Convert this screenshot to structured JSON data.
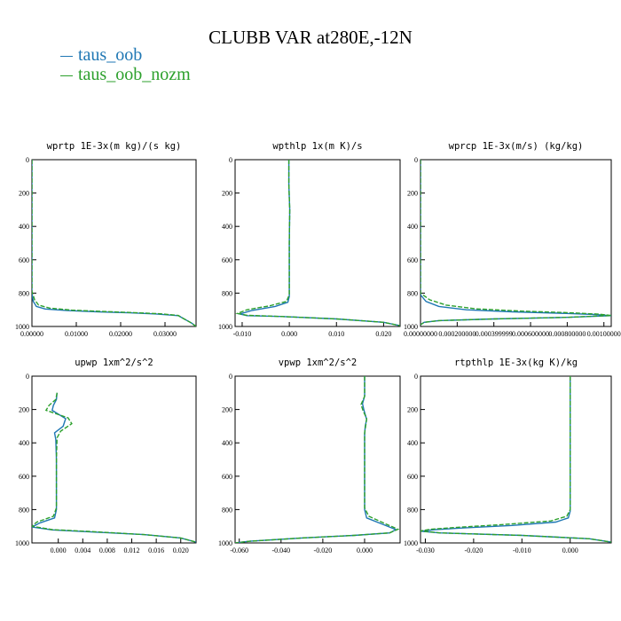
{
  "title": "CLUBB VAR at280E,-12N",
  "legend": [
    {
      "name": "taus_oob",
      "color": "#1f77b4",
      "dash": "solid"
    },
    {
      "name": "taus_oob_nozm",
      "color": "#2ca02c",
      "dash": "dashed"
    }
  ],
  "chart_data": [
    {
      "type": "line",
      "title": "wprtp  1E-3x(m kg)/(s kg)",
      "xlim": [
        0,
        0.037
      ],
      "ylim": [
        1000,
        0
      ],
      "xticks": [
        0,
        0.01,
        0.02,
        0.03
      ],
      "xtick_labels": [
        "0.00000",
        "0.01000",
        "0.02000",
        "0.03000"
      ],
      "yticks": [
        0,
        200,
        400,
        600,
        800,
        1000
      ],
      "ytick_labels": [
        "0",
        "200",
        "400",
        "600",
        "800",
        "1000"
      ],
      "grid": false,
      "series": [
        {
          "name": "taus_oob",
          "x": [
            0,
            0,
            0,
            0.0003,
            0.001,
            0.003,
            0.008,
            0.015,
            0.022,
            0.028,
            0.033,
            0.034,
            0.036,
            0.037
          ],
          "y": [
            0,
            400,
            800,
            850,
            880,
            895,
            905,
            912,
            918,
            925,
            935,
            950,
            980,
            1000
          ]
        },
        {
          "name": "taus_oob_nozm",
          "x": [
            0,
            0,
            0,
            0.0006,
            0.0015,
            0.004,
            0.009,
            0.016,
            0.023,
            0.029,
            0.033,
            0.034,
            0.036,
            0.037
          ],
          "y": [
            0,
            400,
            790,
            840,
            872,
            890,
            902,
            910,
            917,
            924,
            934,
            950,
            980,
            1000
          ]
        }
      ]
    },
    {
      "type": "line",
      "title": "wpthlp  1x(m K)/s",
      "xlim": [
        -0.0115,
        0.0235
      ],
      "ylim": [
        1000,
        0
      ],
      "xticks": [
        -0.01,
        0,
        0.01,
        0.02
      ],
      "xtick_labels": [
        "-0.010",
        "0.000",
        "0.010",
        "0.020"
      ],
      "yticks": [
        0,
        200,
        400,
        600,
        800,
        1000
      ],
      "ytick_labels": [
        "0",
        "200",
        "400",
        "600",
        "800",
        "1000"
      ],
      "grid": false,
      "series": [
        {
          "name": "taus_oob",
          "x": [
            -0.0001,
            -0.0001,
            0.0001,
            0,
            0,
            0,
            -0.0003,
            -0.003,
            -0.008,
            -0.0105,
            -0.009,
            -0.002,
            0.01,
            0.02,
            0.0235
          ],
          "y": [
            0,
            150,
            300,
            500,
            700,
            820,
            855,
            880,
            905,
            925,
            935,
            940,
            955,
            975,
            995
          ]
        },
        {
          "name": "taus_oob_nozm",
          "x": [
            -0.0001,
            -0.0001,
            0.0001,
            0,
            0,
            0,
            -0.0006,
            -0.004,
            -0.009,
            -0.011,
            -0.009,
            -0.002,
            0.01,
            0.02,
            0.0235
          ],
          "y": [
            0,
            150,
            300,
            500,
            700,
            810,
            850,
            875,
            900,
            922,
            933,
            940,
            955,
            975,
            995
          ]
        }
      ]
    },
    {
      "type": "line",
      "title": "wprcp  1E-3x(m/s) (kg/kg)",
      "xlim": [
        0,
        0.00104
      ],
      "ylim": [
        1000,
        0
      ],
      "xticks": [
        0,
        0.0002,
        0.0004,
        0.0006,
        0.0008,
        0.001
      ],
      "xtick_labels": [
        "0.00000000",
        "0.000200000",
        "0.000399999",
        "0.000600000",
        "0.000800000",
        "0.00100000"
      ],
      "yticks": [
        0,
        200,
        400,
        600,
        800,
        1000
      ],
      "ytick_labels": [
        "0",
        "200",
        "400",
        "600",
        "800",
        "1000"
      ],
      "grid": false,
      "series": [
        {
          "name": "taus_oob",
          "x": [
            0,
            0,
            0,
            3e-05,
            0.0001,
            0.00025,
            0.0005,
            0.00075,
            0.00095,
            0.00104,
            0.0008,
            0.0004,
            0.0001,
            2e-05,
            0
          ],
          "y": [
            0,
            400,
            810,
            850,
            880,
            900,
            912,
            920,
            928,
            935,
            945,
            955,
            965,
            975,
            990
          ]
        },
        {
          "name": "taus_oob_nozm",
          "x": [
            0,
            0,
            0,
            5e-05,
            0.00014,
            0.0003,
            0.00055,
            0.0008,
            0.00097,
            0.00104,
            0.0008,
            0.0004,
            0.0001,
            2e-05,
            0
          ],
          "y": [
            0,
            400,
            800,
            840,
            872,
            894,
            908,
            917,
            926,
            934,
            945,
            955,
            965,
            975,
            990
          ]
        }
      ]
    },
    {
      "type": "line",
      "title": "upwp  1xm^2/s^2",
      "xlim": [
        -0.0043,
        0.0225
      ],
      "ylim": [
        1000,
        0
      ],
      "xticks": [
        0,
        0.004,
        0.008,
        0.012,
        0.016,
        0.02
      ],
      "xtick_labels": [
        "0.000",
        "0.004",
        "0.008",
        "0.012",
        "0.016",
        "0.020"
      ],
      "yticks": [
        0,
        200,
        400,
        600,
        800,
        1000
      ],
      "ytick_labels": [
        "0",
        "200",
        "400",
        "600",
        "800",
        "1000"
      ],
      "grid": false,
      "series": [
        {
          "name": "taus_oob",
          "x": [
            -0.0002,
            -0.0003,
            -0.0008,
            -0.001,
            0.0012,
            0.0008,
            -0.0006,
            -0.0004,
            -0.0003,
            -0.0003,
            -0.0006,
            -0.003,
            -0.0043,
            -0.001,
            0.006,
            0.014,
            0.02,
            0.0225
          ],
          "y": [
            100,
            140,
            175,
            205,
            255,
            300,
            340,
            380,
            500,
            800,
            850,
            880,
            905,
            922,
            935,
            950,
            970,
            995
          ]
        },
        {
          "name": "taus_oob_nozm",
          "x": [
            -0.0002,
            -0.0004,
            -0.0015,
            -0.002,
            0.0016,
            0.0022,
            0.0004,
            -0.0002,
            -0.0003,
            -0.0003,
            -0.0008,
            -0.0035,
            -0.0043,
            -0.001,
            0.006,
            0.014,
            0.02,
            0.0225
          ],
          "y": [
            100,
            140,
            175,
            205,
            250,
            285,
            330,
            370,
            500,
            790,
            840,
            875,
            900,
            920,
            933,
            950,
            970,
            995
          ]
        }
      ]
    },
    {
      "type": "line",
      "title": "vpwp  1xm^2/s^2",
      "xlim": [
        -0.062,
        0.017
      ],
      "ylim": [
        1000,
        0
      ],
      "xticks": [
        -0.06,
        -0.04,
        -0.02,
        0
      ],
      "xtick_labels": [
        "-0.060",
        "-0.040",
        "-0.020",
        "0.000"
      ],
      "yticks": [
        0,
        200,
        400,
        600,
        800,
        1000
      ],
      "ytick_labels": [
        "0",
        "200",
        "400",
        "600",
        "800",
        "1000"
      ],
      "grid": false,
      "series": [
        {
          "name": "taus_oob",
          "x": [
            0,
            0,
            -0.001,
            -0.0003,
            0.001,
            0.0003,
            0,
            0,
            0.001,
            0.008,
            0.015,
            0.012,
            -0.005,
            -0.03,
            -0.055,
            -0.062
          ],
          "y": [
            0,
            120,
            165,
            205,
            260,
            300,
            350,
            800,
            850,
            885,
            920,
            940,
            955,
            970,
            990,
            1000
          ]
        },
        {
          "name": "taus_oob_nozm",
          "x": [
            0,
            0,
            -0.0017,
            -0.0008,
            0.001,
            0.0006,
            0,
            0,
            0.002,
            0.009,
            0.016,
            0.012,
            -0.005,
            -0.03,
            -0.055,
            -0.062
          ],
          "y": [
            0,
            120,
            170,
            205,
            255,
            290,
            340,
            790,
            840,
            880,
            918,
            940,
            955,
            970,
            990,
            1000
          ]
        }
      ]
    },
    {
      "type": "line",
      "title": "rtpthlp  1E-3x(kg K)/kg",
      "xlim": [
        -0.031,
        0.0085
      ],
      "ylim": [
        1000,
        0
      ],
      "xticks": [
        -0.03,
        -0.02,
        -0.01,
        0
      ],
      "xtick_labels": [
        "-0.030",
        "-0.020",
        "-0.010",
        "0.000"
      ],
      "yticks": [
        0,
        200,
        400,
        600,
        800,
        1000
      ],
      "ytick_labels": [
        "0",
        "200",
        "400",
        "600",
        "800",
        "1000"
      ],
      "grid": false,
      "series": [
        {
          "name": "taus_oob",
          "x": [
            0,
            0,
            0,
            -0.0004,
            -0.003,
            -0.012,
            -0.022,
            -0.028,
            -0.031,
            -0.027,
            -0.01,
            0.004,
            0.0085
          ],
          "y": [
            0,
            600,
            810,
            850,
            875,
            895,
            910,
            920,
            930,
            940,
            955,
            975,
            995
          ]
        },
        {
          "name": "taus_oob_nozm",
          "x": [
            0,
            0,
            0,
            -0.0007,
            -0.004,
            -0.014,
            -0.023,
            -0.029,
            -0.031,
            -0.027,
            -0.01,
            0.004,
            0.0085
          ],
          "y": [
            0,
            600,
            800,
            840,
            868,
            890,
            906,
            918,
            928,
            940,
            955,
            975,
            995
          ]
        }
      ]
    }
  ]
}
